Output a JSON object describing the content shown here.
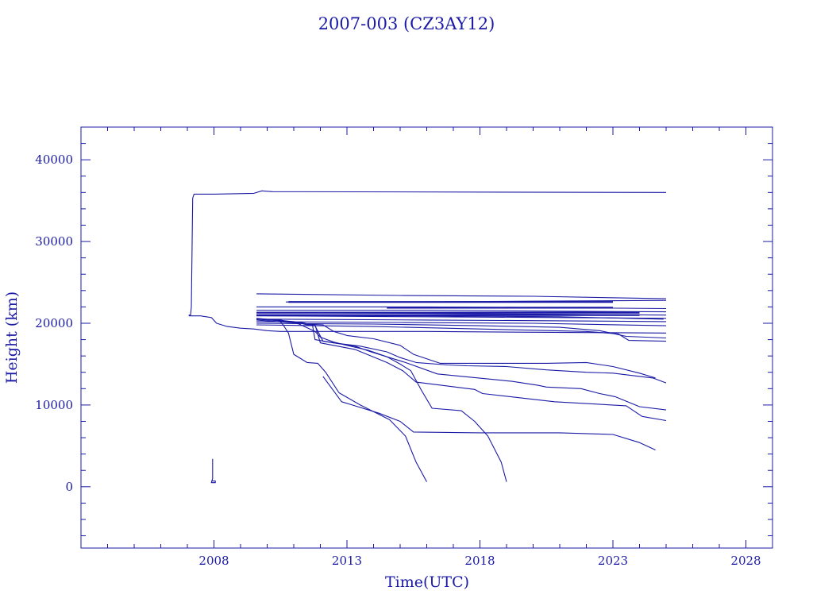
{
  "chart_data": {
    "type": "line",
    "title": "2007-003 (CZ3AY12)",
    "xlabel": "Time(UTC)",
    "ylabel": "Height (km)",
    "xlim": [
      2003,
      2029
    ],
    "ylim": [
      -7500,
      44000
    ],
    "xticks": [
      2008,
      2013,
      2018,
      2023,
      2028
    ],
    "yticks": [
      0,
      10000,
      20000,
      30000,
      40000
    ],
    "grid": false,
    "series": [
      {
        "x": [
          2007.05,
          2007.12,
          2007.15,
          2007.2,
          2007.25,
          2007.5,
          2008.0,
          2009.5,
          2009.8,
          2010.2,
          2025.0
        ],
        "y": [
          21000,
          21000,
          22000,
          35300,
          35800,
          35800,
          35800,
          35900,
          36200,
          36100,
          36000
        ]
      },
      {
        "x": [
          2007.05,
          2007.5,
          2007.9,
          2008.1,
          2008.5,
          2009.0,
          2009.5,
          2010.0,
          2010.5,
          2011.0,
          2012.0,
          2013.0,
          2016.0,
          2020.0,
          2025.0
        ],
        "y": [
          20900,
          20900,
          20700,
          20000,
          19600,
          19400,
          19300,
          19100,
          19000,
          19000,
          19000,
          19000,
          19000,
          18900,
          18800
        ]
      },
      {
        "x": [
          2007.95,
          2007.95,
          2007.9,
          2008.05,
          2008.05,
          2007.9
        ],
        "y": [
          3400,
          1000,
          500,
          500,
          700,
          700
        ]
      },
      {
        "x": [
          2009.6,
          2015,
          2020,
          2025.0
        ],
        "y": [
          23600,
          23400,
          23300,
          23000
        ]
      },
      {
        "x": [
          2010.7,
          2015,
          2020,
          2025.0
        ],
        "y": [
          22600,
          22600,
          22700,
          22800
        ]
      },
      {
        "x": [
          2009.6,
          2016,
          2021,
          2025.0
        ],
        "y": [
          22000,
          22000,
          21900,
          21800
        ]
      },
      {
        "x": [
          2009.6,
          2016,
          2020,
          2025.0
        ],
        "y": [
          21600,
          21600,
          21500,
          21400
        ]
      },
      {
        "x": [
          2009.6,
          2016,
          2021,
          2025.0
        ],
        "y": [
          21300,
          21200,
          21100,
          21000
        ]
      },
      {
        "x": [
          2009.6,
          2016,
          2021,
          2025.0
        ],
        "y": [
          20900,
          20800,
          20700,
          20600
        ]
      },
      {
        "x": [
          2009.6,
          2016,
          2021,
          2025.0
        ],
        "y": [
          20500,
          20400,
          20300,
          20200
        ]
      },
      {
        "x": [
          2009.6,
          2015,
          2020,
          2025.0
        ],
        "y": [
          20200,
          20100,
          20000,
          19700
        ]
      },
      {
        "x": [
          2009.6,
          2014,
          2018,
          2021,
          2022.5,
          2023.5,
          2025.0
        ],
        "y": [
          20000,
          19900,
          19700,
          19500,
          19100,
          18400,
          18200
        ]
      },
      {
        "x": [
          2009.6,
          2014,
          2018,
          2022,
          2023.2,
          2023.6,
          2025.0
        ],
        "y": [
          19800,
          19600,
          19300,
          19000,
          18700,
          17900,
          17800
        ]
      },
      {
        "x": [
          2009.6,
          2011,
          2011.5,
          2011.7,
          2011.8,
          2012.5,
          2013.5,
          2014.5,
          2015,
          2015.6,
          2016.8,
          2017.5,
          2019,
          2020.5,
          2022,
          2023,
          2024.5,
          2025.0
        ],
        "y": [
          20600,
          20200,
          19800,
          19800,
          18000,
          17600,
          17200,
          16500,
          15800,
          15200,
          14900,
          14800,
          14700,
          14300,
          14000,
          13900,
          13300,
          12700
        ]
      },
      {
        "x": [
          2009.6,
          2011.3,
          2011.8,
          2012.1,
          2013.3,
          2013.9,
          2015.2,
          2016.4,
          2019.2,
          2020.2,
          2020.5,
          2021.8,
          2022.5,
          2023.1,
          2024.0,
          2025.0
        ],
        "y": [
          20500,
          20100,
          19700,
          17800,
          17200,
          16500,
          15200,
          13800,
          12900,
          12400,
          12200,
          12000,
          11400,
          11000,
          9800,
          9400
        ]
      },
      {
        "x": [
          2009.6,
          2011.2,
          2011.8,
          2012.0,
          2013.3,
          2014.5,
          2015.1,
          2015.6,
          2017.8,
          2018.1,
          2020.8,
          2023.5,
          2024.1,
          2025.0
        ],
        "y": [
          20400,
          20000,
          19800,
          17600,
          16800,
          15200,
          14200,
          12800,
          11900,
          11400,
          10400,
          9900,
          8600,
          8100
        ]
      },
      {
        "x": [
          2009.6,
          2010.5,
          2011.2,
          2011.8,
          2012.0,
          2012.5,
          2013.0,
          2013.8,
          2014.5,
          2015.0,
          2015.4,
          2015.8,
          2016.2,
          2017.3,
          2017.8,
          2018.3,
          2018.8,
          2019.0
        ],
        "y": [
          20500,
          20400,
          19900,
          19000,
          18300,
          17700,
          17300,
          16700,
          15900,
          15000,
          14200,
          11800,
          9600,
          9300,
          8000,
          6200,
          3000,
          600
        ]
      },
      {
        "x": [
          2010.4,
          2010.6,
          2010.8,
          2011.0,
          2011.5,
          2011.9,
          2012.2,
          2012.7,
          2013.5,
          2014.6,
          2015.2,
          2015.6,
          2016.0
        ],
        "y": [
          20500,
          19800,
          18800,
          16200,
          15200,
          15100,
          14000,
          11500,
          10000,
          8200,
          6200,
          3000,
          600
        ]
      },
      {
        "x": [
          2010.5,
          2011.5,
          2012.1,
          2012.5,
          2013.0,
          2014.0,
          2015.0,
          2015.5,
          2016.5,
          2020.5,
          2022.0,
          2023.0,
          2024.0,
          2024.6
        ],
        "y": [
          20300,
          19900,
          19800,
          19000,
          18500,
          18100,
          17300,
          16200,
          15100,
          15100,
          15200,
          14700,
          13900,
          13300
        ]
      },
      {
        "x": [
          2012.1,
          2012.8,
          2013.2,
          2014.2,
          2015.0,
          2015.5,
          2018.0,
          2021.0,
          2023.0,
          2024.0,
          2024.6
        ],
        "y": [
          13500,
          10400,
          10000,
          9000,
          8000,
          6700,
          6600,
          6600,
          6400,
          5400,
          4500
        ]
      },
      {
        "x": [
          2009.6,
          2016,
          2021,
          2024.9
        ],
        "y": [
          21000,
          20900,
          20800,
          20500
        ],
        "bold": false
      }
    ],
    "bold_series": [
      {
        "x": [
          2009.6,
          2012,
          2016,
          2020,
          2024.0
        ],
        "y": [
          21300,
          21300,
          21300,
          21300,
          21300
        ]
      },
      {
        "x": [
          2010.8,
          2012,
          2016,
          2020,
          2023.0
        ],
        "y": [
          22600,
          22600,
          22600,
          22600,
          22600
        ]
      },
      {
        "x": [
          2009.6,
          2012,
          2016,
          2020,
          2024.0
        ],
        "y": [
          21000,
          21000,
          21000,
          21000,
          21000
        ]
      },
      {
        "x": [
          2014.5,
          2016,
          2018,
          2020,
          2023.0
        ],
        "y": [
          21900,
          21900,
          21900,
          21900,
          21900
        ]
      }
    ]
  }
}
